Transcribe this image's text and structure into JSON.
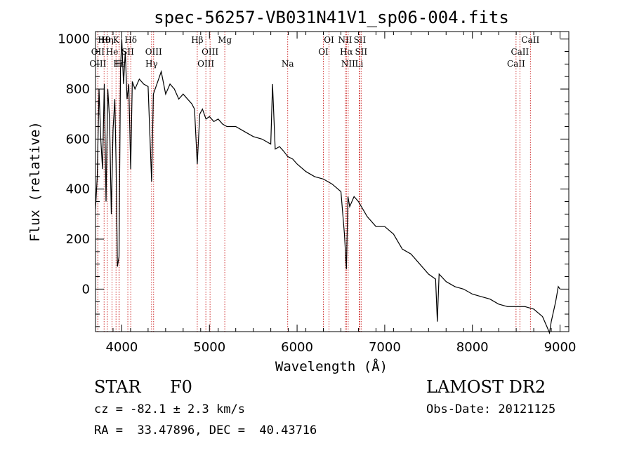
{
  "chart_data": {
    "type": "line",
    "title": "spec-56257-VB031N41V1_sp06-004.fits",
    "xlabel": "Wavelength (Å)",
    "ylabel": "Flux (relative)",
    "xlim": [
      3700,
      9100
    ],
    "ylim": [
      -170,
      1030
    ],
    "xticks": [
      4000,
      5000,
      6000,
      7000,
      8000,
      9000
    ],
    "yticks": [
      0,
      200,
      400,
      600,
      800,
      1000
    ],
    "grid": false,
    "series": [
      {
        "x": [
          3700,
          3720,
          3740,
          3760,
          3780,
          3800,
          3820,
          3840,
          3860,
          3880,
          3900,
          3920,
          3935,
          3950,
          3968,
          3985,
          4000,
          4020,
          4040,
          4060,
          4080,
          4101,
          4120,
          4150,
          4200,
          4250,
          4300,
          4340,
          4360,
          4400,
          4450,
          4500,
          4550,
          4600,
          4650,
          4700,
          4750,
          4800,
          4830,
          4861,
          4890,
          4920,
          4960,
          5000,
          5050,
          5100,
          5150,
          5200,
          5300,
          5400,
          5500,
          5600,
          5700,
          5720,
          5750,
          5800,
          5850,
          5893,
          5950,
          6000,
          6100,
          6200,
          6300,
          6400,
          6500,
          6540,
          6563,
          6580,
          6600,
          6650,
          6700,
          6800,
          6900,
          7000,
          7100,
          7200,
          7300,
          7400,
          7500,
          7580,
          7600,
          7620,
          7700,
          7800,
          7900,
          8000,
          8100,
          8200,
          8300,
          8400,
          8500,
          8600,
          8700,
          8800,
          8850,
          8880,
          8900,
          8950,
          8980,
          9000
        ],
        "y": [
          320,
          450,
          800,
          600,
          480,
          820,
          350,
          800,
          680,
          300,
          640,
          760,
          500,
          90,
          130,
          880,
          1000,
          820,
          950,
          760,
          820,
          480,
          830,
          800,
          840,
          820,
          810,
          430,
          780,
          820,
          870,
          780,
          820,
          800,
          760,
          780,
          760,
          740,
          720,
          500,
          700,
          720,
          680,
          690,
          670,
          680,
          660,
          650,
          650,
          630,
          610,
          600,
          580,
          820,
          560,
          570,
          550,
          530,
          520,
          500,
          470,
          450,
          440,
          420,
          390,
          220,
          80,
          370,
          330,
          370,
          350,
          290,
          250,
          250,
          220,
          160,
          140,
          100,
          60,
          40,
          -130,
          60,
          30,
          10,
          0,
          -20,
          -30,
          -40,
          -60,
          -70,
          -70,
          -70,
          -80,
          -110,
          -150,
          -175,
          -130,
          -50,
          10,
          0
        ]
      }
    ],
    "lines": [
      {
        "name": "Hθ",
        "wl": 3798,
        "row": 0
      },
      {
        "name": "OII",
        "wl": 3727,
        "row": 1
      },
      {
        "name": "OIII",
        "wl": 3727,
        "row": 2
      },
      {
        "name": "Hη",
        "wl": 3835,
        "row": 0
      },
      {
        "name": "He",
        "wl": 3889,
        "row": 1
      },
      {
        "name": "K",
        "wl": 3934,
        "row": 0
      },
      {
        "name": "Hε",
        "wl": 3970,
        "row": 2
      },
      {
        "name": "H",
        "wl": 3968,
        "row": 2
      },
      {
        "name": "SII",
        "wl": 4069,
        "row": 1
      },
      {
        "name": "Hδ",
        "wl": 4102,
        "row": 0
      },
      {
        "name": "OIII",
        "wl": 4363,
        "row": 1
      },
      {
        "name": "Hγ",
        "wl": 4340,
        "row": 2
      },
      {
        "name": "Hβ",
        "wl": 4861,
        "row": 0
      },
      {
        "name": "OIII",
        "wl": 4959,
        "row": 2
      },
      {
        "name": "OIII",
        "wl": 5007,
        "row": 1
      },
      {
        "name": "Mg",
        "wl": 5175,
        "row": 0
      },
      {
        "name": "Na",
        "wl": 5893,
        "row": 2
      },
      {
        "name": "OI",
        "wl": 6300,
        "row": 1
      },
      {
        "name": "OI",
        "wl": 6364,
        "row": 0
      },
      {
        "name": "NII",
        "wl": 6548,
        "row": 0
      },
      {
        "name": "Hα",
        "wl": 6563,
        "row": 1
      },
      {
        "name": "NII",
        "wl": 6583,
        "row": 2
      },
      {
        "name": "SII",
        "wl": 6716,
        "row": 0
      },
      {
        "name": "SII",
        "wl": 6731,
        "row": 1
      },
      {
        "name": "Li",
        "wl": 6708,
        "row": 2
      },
      {
        "name": "CaII",
        "wl": 8498,
        "row": 2
      },
      {
        "name": "CaII",
        "wl": 8542,
        "row": 1
      },
      {
        "name": "CaII",
        "wl": 8662,
        "row": 0
      }
    ]
  },
  "info": {
    "class": "STAR",
    "subclass": "F0",
    "survey": "LAMOST DR2",
    "cz": "cz = -82.1 ± 2.3 km/s",
    "obs_date": "Obs-Date: 20121125",
    "coords": "RA =  33.47896, DEC =  40.43716"
  }
}
